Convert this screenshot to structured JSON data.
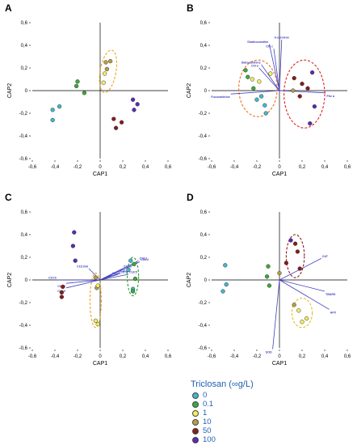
{
  "chart_data": [
    {
      "panel": "A",
      "type": "scatter",
      "xlabel": "CAP1",
      "ylabel": "CAP2",
      "xlim": [
        -0.6,
        0.6
      ],
      "ylim": [
        -0.6,
        0.6
      ],
      "xticks": [
        "-0,6",
        "-0,4",
        "-0,2",
        "0",
        "0,2",
        "0,4",
        "0,6"
      ],
      "yticks": [
        "0,6",
        "0,4",
        "0,2",
        "0",
        "-0,2",
        "-0,4",
        "-0,6"
      ],
      "points": [
        {
          "x": -0.42,
          "y": -0.17,
          "group": "0"
        },
        {
          "x": -0.36,
          "y": -0.14,
          "group": "0"
        },
        {
          "x": -0.42,
          "y": -0.26,
          "group": "0"
        },
        {
          "x": -0.2,
          "y": 0.08,
          "group": "0.1"
        },
        {
          "x": -0.21,
          "y": 0.04,
          "group": "0.1"
        },
        {
          "x": -0.14,
          "y": -0.02,
          "group": "0.1"
        },
        {
          "x": 0.05,
          "y": 0.25,
          "group": "10"
        },
        {
          "x": 0.09,
          "y": 0.26,
          "group": "10"
        },
        {
          "x": 0.06,
          "y": 0.19,
          "group": "10"
        },
        {
          "x": 0.04,
          "y": 0.15,
          "group": "1"
        },
        {
          "x": 0.03,
          "y": 0.07,
          "group": "1"
        },
        {
          "x": 0.29,
          "y": -0.08,
          "group": "100"
        },
        {
          "x": 0.33,
          "y": -0.12,
          "group": "100"
        },
        {
          "x": 0.3,
          "y": -0.17,
          "group": "100"
        },
        {
          "x": 0.12,
          "y": -0.25,
          "group": "50"
        },
        {
          "x": 0.19,
          "y": -0.28,
          "group": "50"
        },
        {
          "x": 0.14,
          "y": -0.33,
          "group": "50"
        }
      ],
      "ellipses": [
        {
          "cx": 0.07,
          "cy": 0.17,
          "rx": 0.07,
          "ry": 0.19,
          "angle": 10,
          "color": "#f0a020"
        }
      ],
      "vectors": []
    },
    {
      "panel": "B",
      "type": "scatter",
      "xlabel": "CAP1",
      "ylabel": "CAP2",
      "xlim": [
        -0.6,
        0.6
      ],
      "ylim": [
        -0.6,
        0.6
      ],
      "xticks": [
        "-0,6",
        "-0,4",
        "-0,2",
        "0",
        "0,2",
        "0,4",
        "0,6"
      ],
      "yticks": [
        "0,6",
        "0,4",
        "0,2",
        "0",
        "-0,2",
        "-0,4",
        "-0,6"
      ],
      "points": [
        {
          "x": -0.3,
          "y": 0.18,
          "group": "0.1"
        },
        {
          "x": -0.28,
          "y": 0.12,
          "group": "0.1"
        },
        {
          "x": -0.23,
          "y": 0.02,
          "group": "0.1"
        },
        {
          "x": -0.24,
          "y": 0.1,
          "group": "1"
        },
        {
          "x": -0.18,
          "y": 0.08,
          "group": "1"
        },
        {
          "x": -0.08,
          "y": 0.15,
          "group": "1"
        },
        {
          "x": -0.16,
          "y": -0.05,
          "group": "0"
        },
        {
          "x": -0.2,
          "y": -0.08,
          "group": "0"
        },
        {
          "x": -0.13,
          "y": -0.13,
          "group": "0"
        },
        {
          "x": -0.12,
          "y": -0.2,
          "group": "0"
        },
        {
          "x": 0.13,
          "y": 0.11,
          "group": "50"
        },
        {
          "x": 0.2,
          "y": 0.06,
          "group": "50"
        },
        {
          "x": 0.25,
          "y": 0.02,
          "group": "50"
        },
        {
          "x": 0.18,
          "y": -0.05,
          "group": "50"
        },
        {
          "x": 0.29,
          "y": 0.16,
          "group": "100"
        },
        {
          "x": 0.31,
          "y": -0.14,
          "group": "100"
        },
        {
          "x": 0.27,
          "y": -0.29,
          "group": "100"
        },
        {
          "x": 0.12,
          "y": 0.0,
          "group": "10"
        }
      ],
      "ellipses": [
        {
          "cx": -0.19,
          "cy": 0.02,
          "rx": 0.17,
          "ry": 0.25,
          "angle": 0,
          "color": "#f07020"
        },
        {
          "cx": 0.22,
          "cy": -0.03,
          "rx": 0.18,
          "ry": 0.3,
          "angle": 0,
          "color": "#e02020"
        }
      ],
      "vectors": [
        {
          "label": "Diadinoxanthin",
          "x2": -0.09,
          "y2": 0.41
        },
        {
          "label": "Chl c",
          "x2": -0.05,
          "y2": 0.37
        },
        {
          "label": "b-carotene",
          "x2": 0.02,
          "y2": 0.45
        },
        {
          "label": "Diatoxanthine",
          "x2": -0.16,
          "y2": 0.23
        },
        {
          "label": "Chl a",
          "x2": -0.18,
          "y2": 0.2
        },
        {
          "label": "Fucoxanthine",
          "x2": -0.43,
          "y2": -0.03
        },
        {
          "label": "Phe a",
          "x2": 0.41,
          "y2": -0.02
        }
      ]
    },
    {
      "panel": "C",
      "type": "scatter",
      "xlabel": "CAP1",
      "ylabel": "CAP2",
      "xlim": [
        -0.6,
        0.6
      ],
      "ylim": [
        -0.6,
        0.6
      ],
      "xticks": [
        "-0,6",
        "-0,4",
        "-0,2",
        "0",
        "0,2",
        "0,4",
        "0,6"
      ],
      "yticks": [
        "0,6",
        "0,4",
        "0,2",
        "0",
        "-0,2",
        "-0,4",
        "-0,6"
      ],
      "points": [
        {
          "x": -0.23,
          "y": 0.42,
          "group": "100"
        },
        {
          "x": -0.24,
          "y": 0.3,
          "group": "100"
        },
        {
          "x": -0.22,
          "y": 0.17,
          "group": "100"
        },
        {
          "x": -0.33,
          "y": -0.06,
          "group": "50"
        },
        {
          "x": -0.34,
          "y": -0.11,
          "group": "50"
        },
        {
          "x": -0.34,
          "y": -0.15,
          "group": "50"
        },
        {
          "x": -0.04,
          "y": 0.02,
          "group": "10"
        },
        {
          "x": -0.03,
          "y": -0.07,
          "group": "10"
        },
        {
          "x": -0.02,
          "y": -0.05,
          "group": "1"
        },
        {
          "x": -0.04,
          "y": -0.36,
          "group": "1"
        },
        {
          "x": -0.02,
          "y": -0.39,
          "group": "1"
        },
        {
          "x": 0.27,
          "y": 0.17,
          "group": "0"
        },
        {
          "x": 0.25,
          "y": 0.09,
          "group": "0"
        },
        {
          "x": 0.29,
          "y": -0.08,
          "group": "0"
        },
        {
          "x": 0.3,
          "y": 0.14,
          "group": "0.1"
        },
        {
          "x": 0.31,
          "y": 0.01,
          "group": "0.1"
        },
        {
          "x": 0.29,
          "y": -0.1,
          "group": "0.1"
        }
      ],
      "ellipses": [
        {
          "cx": -0.04,
          "cy": -0.18,
          "rx": 0.05,
          "ry": 0.24,
          "angle": 0,
          "color": "#f0a020"
        },
        {
          "cx": 0.29,
          "cy": 0.03,
          "rx": 0.05,
          "ry": 0.17,
          "angle": 0,
          "color": "#20a020"
        }
      ],
      "vectors": [
        {
          "label": "C16:1",
          "x2": 0.34,
          "y2": 0.17
        },
        {
          "label": "C18:4",
          "x2": 0.35,
          "y2": 0.16
        },
        {
          "label": "C16:3",
          "x2": 0.2,
          "y2": 0.1
        },
        {
          "label": "C18:5",
          "x2": 0.25,
          "y2": 0.05
        },
        {
          "label": "C18:2",
          "x2": 0.17,
          "y2": 0.06
        },
        {
          "label": "C20:3",
          "x2": 0.16,
          "y2": 0.05
        },
        {
          "label": "C22:6",
          "x2": 0.1,
          "y2": 0.04
        },
        {
          "label": "C18:3n6",
          "x2": -0.1,
          "y2": 0.1
        },
        {
          "label": "C14:0",
          "x2": -0.38,
          "y2": 0.0
        },
        {
          "label": "C18:1",
          "x2": -0.3,
          "y2": -0.03
        },
        {
          "label": "C16:0",
          "x2": -0.3,
          "y2": -0.07
        }
      ]
    },
    {
      "panel": "D",
      "type": "scatter",
      "xlabel": "CAP1",
      "ylabel": "CAP2",
      "xlim": [
        -0.6,
        0.6
      ],
      "ylim": [
        -0.6,
        0.6
      ],
      "xticks": [
        "-0,6",
        "-0,4",
        "-0,2",
        "0",
        "0,2",
        "0,4",
        "0,6"
      ],
      "yticks": [
        "0,6",
        "0,4",
        "0,2",
        "0",
        "-0,2",
        "-0,4",
        "-0,6"
      ],
      "points": [
        {
          "x": -0.48,
          "y": 0.13,
          "group": "0"
        },
        {
          "x": -0.47,
          "y": -0.04,
          "group": "0"
        },
        {
          "x": -0.5,
          "y": -0.1,
          "group": "0"
        },
        {
          "x": -0.1,
          "y": 0.12,
          "group": "0.1"
        },
        {
          "x": -0.11,
          "y": 0.03,
          "group": "0.1"
        },
        {
          "x": -0.09,
          "y": -0.05,
          "group": "0.1"
        },
        {
          "x": 0.1,
          "y": 0.35,
          "group": "100"
        },
        {
          "x": 0.14,
          "y": 0.32,
          "group": "50"
        },
        {
          "x": 0.16,
          "y": 0.25,
          "group": "50"
        },
        {
          "x": 0.18,
          "y": 0.1,
          "group": "50"
        },
        {
          "x": 0.06,
          "y": 0.15,
          "group": "50"
        },
        {
          "x": 0.0,
          "y": 0.06,
          "group": "10"
        },
        {
          "x": 0.13,
          "y": -0.22,
          "group": "10"
        },
        {
          "x": 0.17,
          "y": -0.27,
          "group": "1"
        },
        {
          "x": 0.2,
          "y": -0.37,
          "group": "1"
        },
        {
          "x": 0.24,
          "y": -0.34,
          "group": "1"
        }
      ],
      "ellipses": [
        {
          "cx": 0.14,
          "cy": 0.21,
          "rx": 0.08,
          "ry": 0.19,
          "angle": 0,
          "color": "#8b1a1a"
        },
        {
          "cx": 0.2,
          "cy": -0.29,
          "rx": 0.09,
          "ry": 0.13,
          "angle": 0,
          "color": "#e0c020"
        }
      ],
      "vectors": [
        {
          "label": "CAT",
          "x2": 0.37,
          "y2": 0.19
        },
        {
          "label": "TBARS",
          "x2": 0.4,
          "y2": -0.1
        },
        {
          "label": "APX",
          "x2": 0.44,
          "y2": -0.26
        },
        {
          "label": "SOD",
          "x2": -0.06,
          "y2": -0.61
        }
      ]
    }
  ],
  "legend": {
    "title": "Triclosan (∞g/L)",
    "items": [
      {
        "label": "0",
        "color": "#40b8d0"
      },
      {
        "label": "0.1",
        "color": "#3aaa3a"
      },
      {
        "label": "1",
        "color": "#f0f060"
      },
      {
        "label": "10",
        "color": "#b8a040"
      },
      {
        "label": "50",
        "color": "#8b1a1a"
      },
      {
        "label": "100",
        "color": "#5a2ab8"
      }
    ]
  },
  "group_colors": {
    "0": "#40b8d0",
    "0.1": "#3aaa3a",
    "1": "#f0f060",
    "10": "#b8a040",
    "50": "#8b1a1a",
    "100": "#5a2ab8"
  },
  "vector_color": "#4040c0"
}
